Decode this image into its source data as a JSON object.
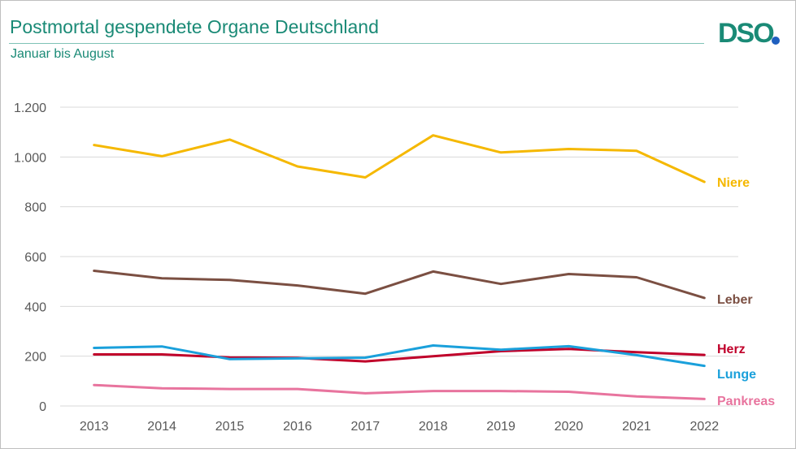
{
  "header": {
    "title": "Postmortal gespendete Organe Deutschland",
    "subtitle": "Januar bis August",
    "logo_text": "DSO"
  },
  "chart_data": {
    "type": "line",
    "title": "Postmortal gespendete Organe Deutschland",
    "subtitle": "Januar bis August",
    "xlabel": "",
    "ylabel": "",
    "x": [
      "2013",
      "2014",
      "2015",
      "2016",
      "2017",
      "2018",
      "2019",
      "2020",
      "2021",
      "2022"
    ],
    "ylim": [
      0,
      1200
    ],
    "yticks": [
      0,
      200,
      400,
      600,
      800,
      1000,
      1200
    ],
    "ytick_labels": [
      "0",
      "200",
      "400",
      "600",
      "800",
      "1.000",
      "1.200"
    ],
    "grid": true,
    "legend": "inline labels at line ends (right)",
    "series": [
      {
        "name": "Niere",
        "color": "#f5b800",
        "values": [
          1048,
          1003,
          1070,
          962,
          918,
          1087,
          1018,
          1032,
          1025,
          900
        ]
      },
      {
        "name": "Leber",
        "color": "#7b4f42",
        "values": [
          543,
          513,
          506,
          484,
          451,
          540,
          490,
          530,
          517,
          434
        ]
      },
      {
        "name": "Herz",
        "color": "#c0002a",
        "values": [
          207,
          207,
          195,
          193,
          179,
          200,
          220,
          229,
          216,
          205
        ]
      },
      {
        "name": "Lunge",
        "color": "#1aa0db",
        "values": [
          233,
          239,
          188,
          191,
          194,
          243,
          226,
          240,
          204,
          161
        ]
      },
      {
        "name": "Pankreas",
        "color": "#e8749e",
        "values": [
          84,
          71,
          68,
          68,
          51,
          60,
          60,
          57,
          38,
          28
        ]
      }
    ]
  }
}
